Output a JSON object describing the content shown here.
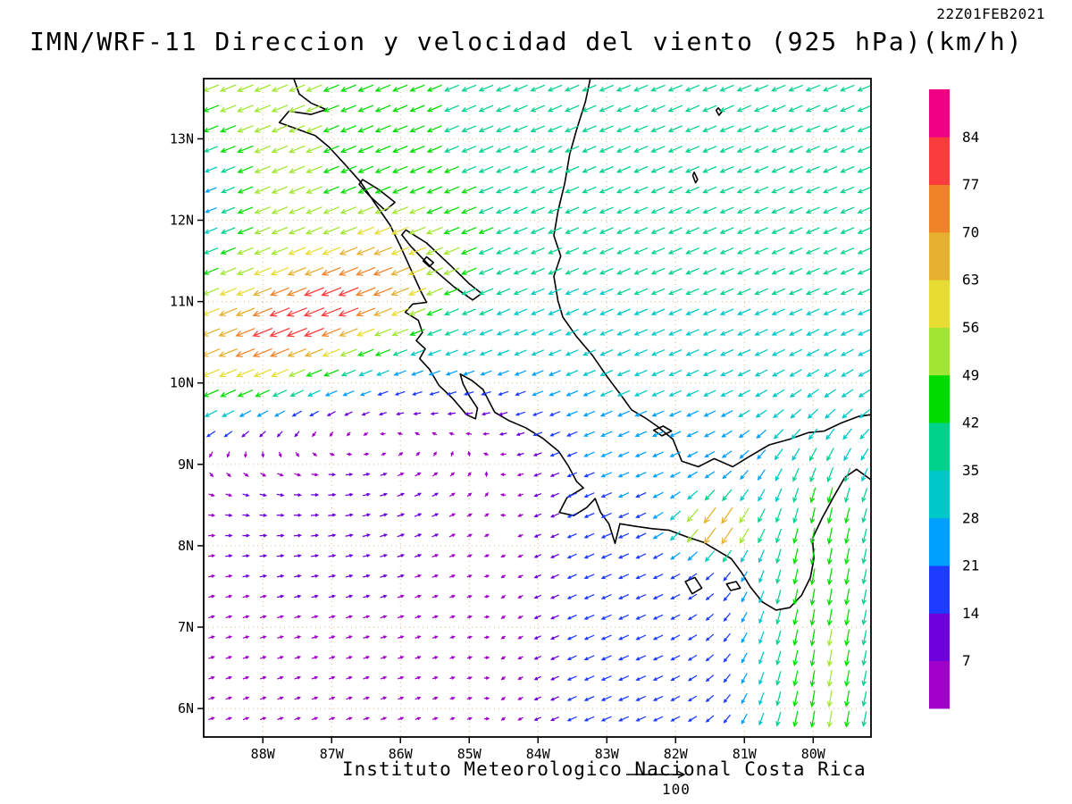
{
  "header": {
    "timestamp": "22Z01FEB2021",
    "title": "IMN/WRF-11 Direccion y velocidad del viento (925 hPa)(km/h)"
  },
  "footer": {
    "caption": "Instituto Meteorologico Nacional Costa Rica",
    "reference_value": "100"
  },
  "chart_data": {
    "type": "vector-field-map",
    "model": "IMN/WRF-11",
    "variable": "Direccion y velocidad del viento",
    "level": "925 hPa",
    "units": "km/h",
    "valid_time": "22Z01FEB2021",
    "lon_range": [
      -88.86,
      -79.16
    ],
    "lat_range": [
      5.65,
      13.74
    ],
    "arrow_grid_spacing_deg": 0.25,
    "lon_ticks": [
      {
        "value": -88,
        "label": "88W"
      },
      {
        "value": -87,
        "label": "87W"
      },
      {
        "value": -86,
        "label": "86W"
      },
      {
        "value": -85,
        "label": "85W"
      },
      {
        "value": -84,
        "label": "84W"
      },
      {
        "value": -83,
        "label": "83W"
      },
      {
        "value": -82,
        "label": "82W"
      },
      {
        "value": -81,
        "label": "81W"
      },
      {
        "value": -80,
        "label": "80W"
      }
    ],
    "lat_ticks": [
      {
        "value": 13,
        "label": "13N"
      },
      {
        "value": 12,
        "label": "12N"
      },
      {
        "value": 11,
        "label": "11N"
      },
      {
        "value": 10,
        "label": "10N"
      },
      {
        "value": 9,
        "label": "9N"
      },
      {
        "value": 8,
        "label": "8N"
      },
      {
        "value": 7,
        "label": "7N"
      },
      {
        "value": 6,
        "label": "6N"
      }
    ],
    "colorbar": {
      "units": "km/h",
      "tick_values": [
        7,
        14,
        21,
        28,
        35,
        42,
        49,
        56,
        63,
        70,
        77,
        84
      ],
      "colors": [
        "#A000C8",
        "#6E00DC",
        "#1E3CFF",
        "#00A0FF",
        "#00C8C8",
        "#00D28C",
        "#00DC00",
        "#A0E632",
        "#E6DC32",
        "#E6AF2D",
        "#F08228",
        "#FA3C3C",
        "#F00082"
      ]
    },
    "grid_color": "#dfb98e",
    "flow_model": {
      "base_trades": {
        "u": -30,
        "v": -13
      },
      "north_boost": {
        "u": -6,
        "v": -2,
        "lat_start": 9.5,
        "lat_span": 4
      },
      "northwest_boost": {
        "u": -14,
        "v": -5,
        "center": [
          -88.5,
          12.8
        ],
        "sigma": [
          2.5,
          2.2
        ]
      },
      "papagayo_jet": {
        "u": -40,
        "v": -15,
        "center_lon": -87.2,
        "axis_lat": 10.85,
        "axis_slope": 0.33,
        "sigma_lat": 0.8,
        "sigma_lon": 2.6,
        "east_cut_lon": -85.2,
        "east_cut_scale": 0.5
      },
      "pacific_wake": {
        "suppression": 0.92,
        "lat_edge": 9.8,
        "lat_scale": 0.4,
        "lon_edge": -83.8,
        "lon_scale": 0.5,
        "drift_u": 8,
        "drift_v": 3
      },
      "wake_eddy": {
        "center": [
          -86.8,
          9.9
        ],
        "sigma": [
          2.2,
          1.6
        ],
        "strength": 13
      },
      "panama_lee": {
        "suppression": 0.75,
        "lat_edge": 9.3,
        "lat_scale": 0.4,
        "lon_edge": -82.5,
        "lon_scale": 0.8
      },
      "gulf_of_panama_jet": {
        "v": -45,
        "center_lon": -79.8,
        "sigma_lon": 1.15,
        "lat_edge": 9.2,
        "lat_scale": 0.4
      },
      "panama_gap_jet": {
        "u": -30,
        "v": -50,
        "center": [
          -81.4,
          8.25
        ],
        "sigma": [
          0.55,
          0.35
        ]
      },
      "northwest_calm_patch": {
        "suppression": 0.6,
        "center": [
          -88.95,
          12.35
        ],
        "sigma": [
          0.55,
          0.75
        ]
      }
    },
    "coastlines": [
      {
        "name": "pacific-coast",
        "closed": false,
        "points": [
          [
            -87.55,
            13.74
          ],
          [
            -87.47,
            13.55
          ],
          [
            -87.3,
            13.44
          ],
          [
            -87.08,
            13.36
          ],
          [
            -87.3,
            13.3
          ],
          [
            -87.62,
            13.34
          ],
          [
            -87.76,
            13.2
          ],
          [
            -87.5,
            13.12
          ],
          [
            -87.24,
            13.04
          ],
          [
            -87.04,
            12.9
          ],
          [
            -86.8,
            12.68
          ],
          [
            -86.58,
            12.47
          ],
          [
            -86.38,
            12.22
          ],
          [
            -86.15,
            11.94
          ],
          [
            -86.0,
            11.68
          ],
          [
            -85.84,
            11.38
          ],
          [
            -85.7,
            11.12
          ],
          [
            -85.62,
            10.99
          ],
          [
            -85.82,
            10.97
          ],
          [
            -85.93,
            10.87
          ],
          [
            -85.74,
            10.77
          ],
          [
            -85.68,
            10.62
          ],
          [
            -85.77,
            10.52
          ],
          [
            -85.64,
            10.42
          ],
          [
            -85.72,
            10.3
          ],
          [
            -85.58,
            10.17
          ],
          [
            -85.44,
            9.97
          ],
          [
            -85.24,
            9.81
          ],
          [
            -85.04,
            9.61
          ],
          [
            -84.91,
            9.56
          ],
          [
            -84.88,
            9.69
          ],
          [
            -84.99,
            9.83
          ],
          [
            -85.09,
            9.99
          ],
          [
            -85.13,
            10.11
          ],
          [
            -84.96,
            10.03
          ],
          [
            -84.8,
            9.92
          ],
          [
            -84.71,
            9.77
          ],
          [
            -84.63,
            9.64
          ],
          [
            -84.43,
            9.54
          ],
          [
            -84.18,
            9.45
          ],
          [
            -83.93,
            9.32
          ],
          [
            -83.7,
            9.16
          ],
          [
            -83.56,
            8.98
          ],
          [
            -83.44,
            8.79
          ],
          [
            -83.34,
            8.71
          ],
          [
            -83.58,
            8.59
          ],
          [
            -83.69,
            8.41
          ],
          [
            -83.48,
            8.37
          ],
          [
            -83.29,
            8.47
          ],
          [
            -83.17,
            8.58
          ],
          [
            -83.09,
            8.41
          ],
          [
            -82.97,
            8.27
          ],
          [
            -82.88,
            8.03
          ],
          [
            -82.81,
            8.27
          ],
          [
            -82.59,
            8.24
          ],
          [
            -82.34,
            8.21
          ],
          [
            -82.09,
            8.19
          ],
          [
            -81.84,
            8.11
          ],
          [
            -81.59,
            8.04
          ],
          [
            -81.39,
            7.94
          ],
          [
            -81.19,
            7.84
          ],
          [
            -81.04,
            7.67
          ],
          [
            -80.91,
            7.49
          ],
          [
            -80.74,
            7.31
          ],
          [
            -80.54,
            7.21
          ],
          [
            -80.34,
            7.24
          ],
          [
            -80.17,
            7.39
          ],
          [
            -80.04,
            7.61
          ],
          [
            -79.99,
            7.84
          ],
          [
            -80.01,
            8.09
          ],
          [
            -79.87,
            8.34
          ],
          [
            -79.71,
            8.59
          ],
          [
            -79.54,
            8.84
          ],
          [
            -79.37,
            8.94
          ],
          [
            -79.16,
            8.81
          ]
        ]
      },
      {
        "name": "caribbean-coast",
        "closed": false,
        "points": [
          [
            -83.24,
            13.74
          ],
          [
            -83.31,
            13.46
          ],
          [
            -83.44,
            13.11
          ],
          [
            -83.54,
            12.81
          ],
          [
            -83.61,
            12.46
          ],
          [
            -83.71,
            12.11
          ],
          [
            -83.77,
            11.81
          ],
          [
            -83.67,
            11.56
          ],
          [
            -83.77,
            11.31
          ],
          [
            -83.71,
            11.01
          ],
          [
            -83.64,
            10.81
          ],
          [
            -83.44,
            10.57
          ],
          [
            -83.21,
            10.34
          ],
          [
            -82.99,
            10.07
          ],
          [
            -82.81,
            9.87
          ],
          [
            -82.64,
            9.67
          ],
          [
            -82.44,
            9.57
          ],
          [
            -82.27,
            9.47
          ],
          [
            -82.04,
            9.31
          ],
          [
            -81.91,
            9.04
          ],
          [
            -81.67,
            8.97
          ],
          [
            -81.44,
            9.07
          ],
          [
            -81.17,
            8.97
          ],
          [
            -80.94,
            9.09
          ],
          [
            -80.64,
            9.24
          ],
          [
            -80.34,
            9.31
          ],
          [
            -80.07,
            9.39
          ],
          [
            -79.84,
            9.41
          ],
          [
            -79.59,
            9.51
          ],
          [
            -79.34,
            9.59
          ],
          [
            -79.16,
            9.61
          ]
        ]
      },
      {
        "name": "lake-nicaragua",
        "closed": true,
        "points": [
          [
            -85.92,
            11.88
          ],
          [
            -85.62,
            11.72
          ],
          [
            -85.28,
            11.45
          ],
          [
            -85.0,
            11.22
          ],
          [
            -84.82,
            11.1
          ],
          [
            -84.95,
            11.02
          ],
          [
            -85.22,
            11.18
          ],
          [
            -85.55,
            11.42
          ],
          [
            -85.85,
            11.68
          ],
          [
            -85.98,
            11.82
          ]
        ]
      },
      {
        "name": "lake-managua",
        "closed": true,
        "points": [
          [
            -86.55,
            12.5
          ],
          [
            -86.32,
            12.38
          ],
          [
            -86.08,
            12.22
          ],
          [
            -86.22,
            12.12
          ],
          [
            -86.45,
            12.3
          ],
          [
            -86.6,
            12.44
          ]
        ]
      },
      {
        "name": "ometepe-island",
        "closed": true,
        "points": [
          [
            -85.62,
            11.55
          ],
          [
            -85.52,
            11.48
          ],
          [
            -85.58,
            11.43
          ],
          [
            -85.67,
            11.5
          ]
        ]
      },
      {
        "name": "bocas-del-toro-islands",
        "closed": true,
        "points": [
          [
            -82.32,
            9.42
          ],
          [
            -82.18,
            9.47
          ],
          [
            -82.06,
            9.41
          ],
          [
            -82.2,
            9.35
          ]
        ]
      },
      {
        "name": "coiba-island",
        "closed": true,
        "points": [
          [
            -81.86,
            7.56
          ],
          [
            -81.72,
            7.61
          ],
          [
            -81.62,
            7.48
          ],
          [
            -81.76,
            7.41
          ]
        ]
      },
      {
        "name": "cebaco-island",
        "closed": true,
        "points": [
          [
            -81.26,
            7.53
          ],
          [
            -81.12,
            7.56
          ],
          [
            -81.06,
            7.48
          ],
          [
            -81.2,
            7.45
          ]
        ]
      },
      {
        "name": "san-andres-island",
        "closed": true,
        "points": [
          [
            -81.73,
            12.59
          ],
          [
            -81.68,
            12.5
          ],
          [
            -81.71,
            12.46
          ],
          [
            -81.75,
            12.55
          ]
        ]
      },
      {
        "name": "providencia-island",
        "closed": true,
        "points": [
          [
            -81.38,
            13.38
          ],
          [
            -81.33,
            13.33
          ],
          [
            -81.37,
            13.29
          ],
          [
            -81.41,
            13.35
          ]
        ]
      }
    ]
  }
}
